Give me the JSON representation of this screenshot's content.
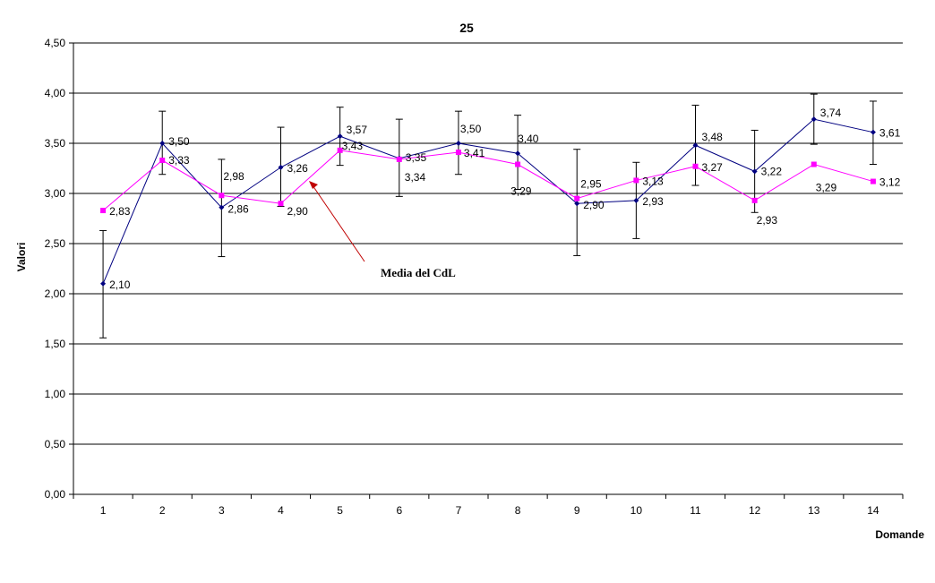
{
  "chart_data": {
    "type": "line",
    "title": "25",
    "xlabel": "Domande",
    "ylabel": "Valori",
    "ylim": [
      0,
      4.5
    ],
    "ytick_step": 0.5,
    "ytick_labels": [
      "0,00",
      "0,50",
      "1,00",
      "1,50",
      "2,00",
      "2,50",
      "3,00",
      "3,50",
      "4,00",
      "4,50"
    ],
    "grid": "horizontal",
    "categories": [
      "1",
      "2",
      "3",
      "4",
      "5",
      "6",
      "7",
      "8",
      "9",
      "10",
      "11",
      "12",
      "13",
      "14"
    ],
    "series": [
      {
        "color": "#000080",
        "marker": "diamond",
        "values": [
          2.1,
          3.5,
          2.86,
          3.26,
          3.57,
          3.35,
          3.5,
          3.4,
          2.9,
          2.93,
          3.48,
          3.22,
          3.74,
          3.61
        ],
        "labels": [
          "2,10",
          "3,50",
          "2,86",
          "3,26",
          "3,57",
          "3,35",
          "3,50",
          "3,40",
          "2,90",
          "2,93",
          "3,48",
          "3,22",
          "3,74",
          "3,61"
        ],
        "error_low": [
          1.56,
          3.19,
          2.37,
          2.87,
          3.28,
          2.97,
          3.19,
          3.04,
          2.38,
          2.55,
          3.08,
          2.81,
          3.49,
          3.29
        ],
        "error_high": [
          2.63,
          3.82,
          3.34,
          3.66,
          3.86,
          3.74,
          3.82,
          3.78,
          3.44,
          3.31,
          3.88,
          3.63,
          3.99,
          3.92
        ]
      },
      {
        "color": "#FF00FF",
        "marker": "square",
        "values": [
          2.83,
          3.33,
          2.98,
          2.9,
          3.43,
          3.34,
          3.41,
          3.29,
          2.95,
          3.13,
          3.27,
          2.93,
          3.29,
          3.12
        ],
        "labels": [
          "2,83",
          "3,33",
          "2,98",
          "2,90",
          "3,43",
          "3,34",
          "3,41",
          "3,29",
          "2,95",
          "3,13",
          "3,27",
          "2,93",
          "3,29",
          "3,12"
        ]
      }
    ],
    "annotation": {
      "text": "Media del CdL",
      "arrow_color": "#C00000"
    }
  }
}
